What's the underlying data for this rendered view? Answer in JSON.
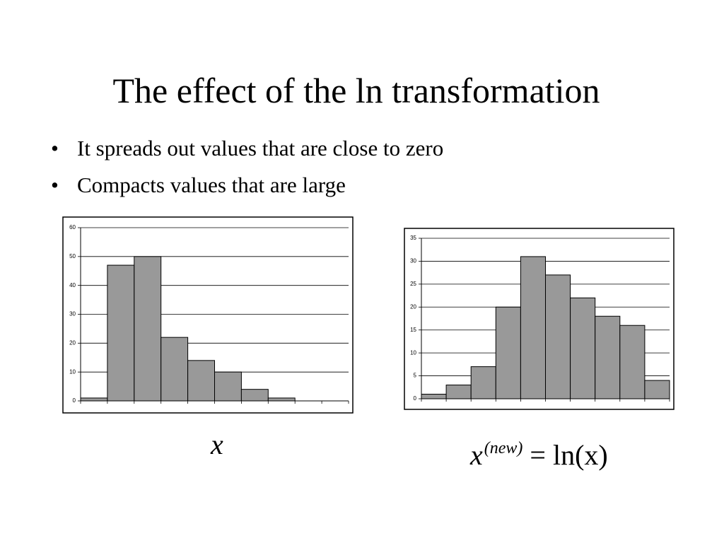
{
  "title": "The effect of the ln transformation",
  "bullets": [
    "It spreads out values that are close to zero",
    "Compacts values that are large"
  ],
  "chart_data": [
    {
      "type": "bar",
      "values": [
        1,
        47,
        50,
        22,
        14,
        10,
        4,
        1,
        0,
        0
      ],
      "color": "#999999",
      "ylim": [
        0,
        60
      ],
      "yticks": [
        0,
        10,
        20,
        30,
        40,
        50,
        60
      ],
      "grid": true,
      "caption": {
        "base": "x"
      }
    },
    {
      "type": "bar",
      "values": [
        1,
        3,
        7,
        20,
        31,
        27,
        22,
        18,
        16,
        4
      ],
      "color": "#999999",
      "ylim": [
        0,
        35
      ],
      "yticks": [
        0,
        5,
        10,
        15,
        20,
        25,
        30,
        35
      ],
      "grid": true,
      "caption": {
        "base": "x",
        "superscript": "(new)",
        "rest": "= ln(x)"
      }
    }
  ]
}
